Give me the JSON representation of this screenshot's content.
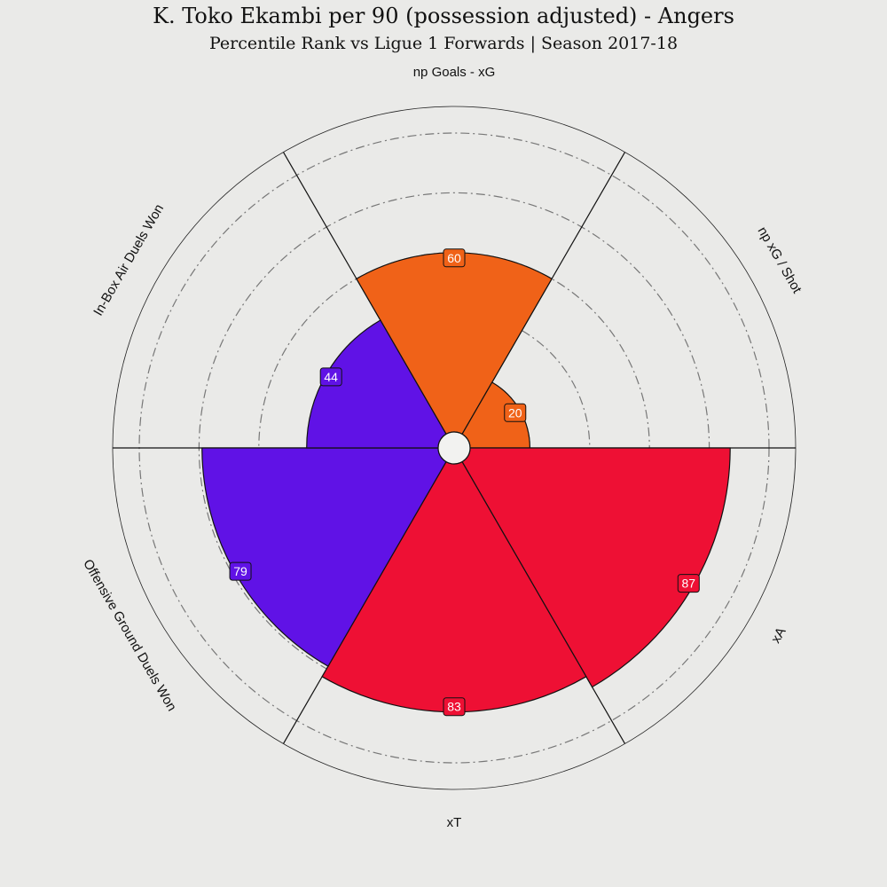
{
  "title": "K. Toko Ekambi per 90 (possession adjusted) - Angers",
  "subtitle": "Percentile Rank vs Ligue 1 Forwards | Season 2017-18",
  "chart_data": {
    "type": "pie",
    "subtype": "polar-bar (pizza)",
    "range": [
      0,
      100
    ],
    "categories": [
      "np Goals - xG",
      "np xG / Shot",
      "xA",
      "xT",
      "Offensive Ground Duels Won",
      "In-Box Air Duels Won"
    ],
    "values": [
      60,
      20,
      87,
      83,
      79,
      44
    ],
    "colors": [
      "#f06218",
      "#f06218",
      "#ee1034",
      "#ee1034",
      "#6012e6",
      "#6012e6"
    ],
    "grid": true
  }
}
